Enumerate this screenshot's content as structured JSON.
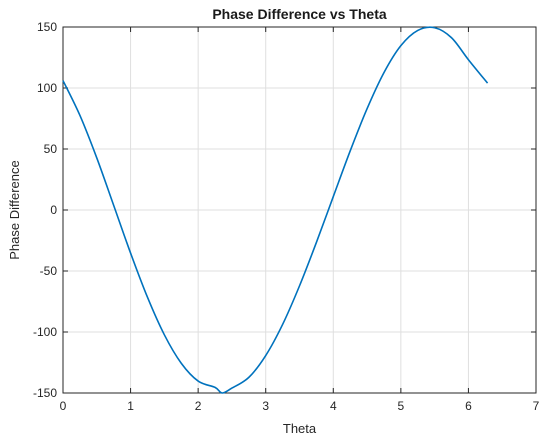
{
  "chart_data": {
    "type": "line",
    "title": "Phase Difference vs Theta",
    "xlabel": "Theta",
    "ylabel": "Phase Difference",
    "xlim": [
      0,
      7
    ],
    "ylim": [
      -150,
      150
    ],
    "xticks": [
      0,
      1,
      2,
      3,
      4,
      5,
      6,
      7
    ],
    "yticks": [
      -150,
      -100,
      -50,
      0,
      50,
      100,
      150
    ],
    "grid": true,
    "series": [
      {
        "color": "#0072BD",
        "x": [
          0,
          0.25,
          0.5,
          0.75,
          1.0,
          1.25,
          1.5,
          1.75,
          2.0,
          2.25,
          2.356,
          2.5,
          2.75,
          3.0,
          3.25,
          3.5,
          3.75,
          4.0,
          4.25,
          4.5,
          4.75,
          5.0,
          5.25,
          5.5,
          5.75,
          6.0,
          6.283
        ],
        "y": [
          106.1,
          77.6,
          42.7,
          3.8,
          -35.3,
          -71.5,
          -102.3,
          -125.6,
          -140.2,
          -145.4,
          -150.0,
          -146.0,
          -137.2,
          -119.3,
          -93.8,
          -62.2,
          -26.6,
          11.0,
          48.4,
          83.0,
          112.6,
          134.7,
          147.2,
          149.4,
          141.2,
          123.2,
          104.0
        ]
      }
    ]
  }
}
